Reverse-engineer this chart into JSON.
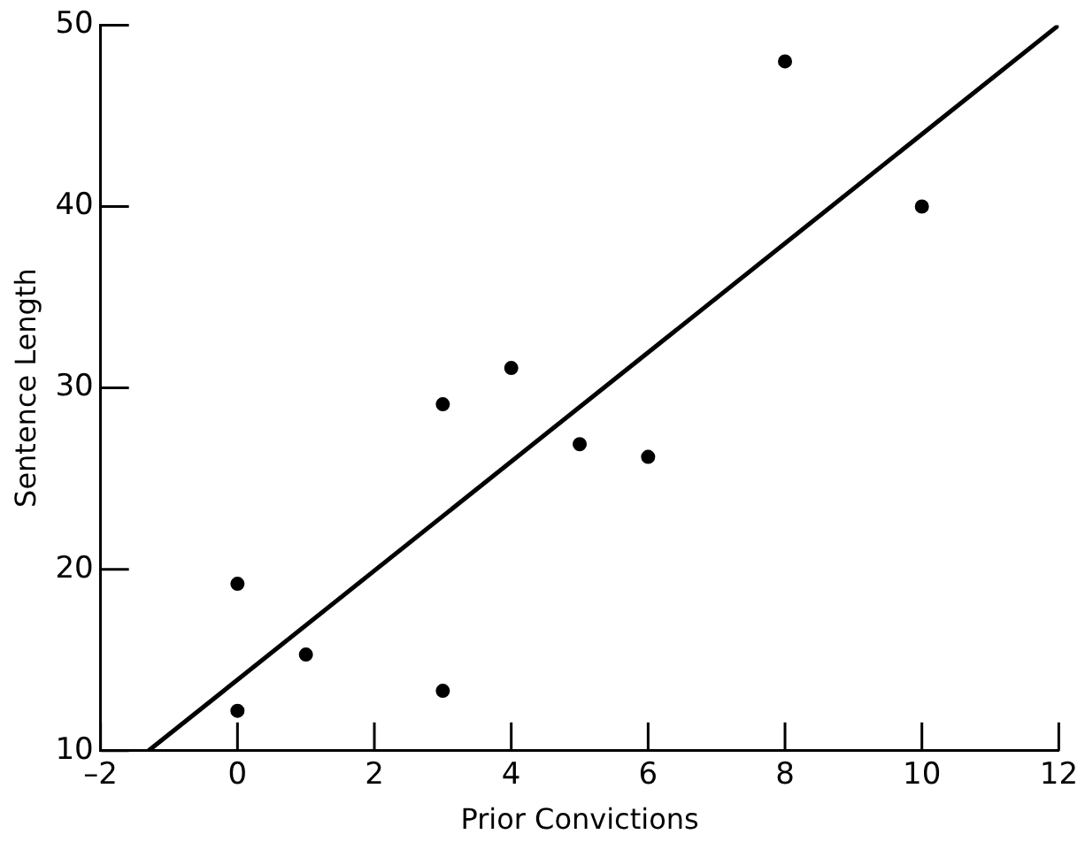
{
  "chart_data": {
    "type": "scatter",
    "xlabel": "Prior Convictions",
    "ylabel": "Sentence Length",
    "x": [
      0,
      0,
      1,
      3,
      3,
      4,
      5,
      6,
      8,
      10
    ],
    "series": [
      {
        "type": "scatter",
        "color": "#000000",
        "values": [
          19.2,
          12.2,
          15.3,
          13.3,
          29.1,
          31.1,
          26.9,
          26.2,
          48.0,
          40.0
        ]
      },
      {
        "type": "line",
        "color": "#000000",
        "x": [
          -1.3,
          12
        ],
        "values": [
          10,
          50
        ],
        "marker": "none"
      }
    ],
    "marker": "circle",
    "grid": false,
    "legend": false,
    "xlim": [
      -2,
      12
    ],
    "xticks": [
      {
        "value": -2,
        "label": "–2"
      },
      0,
      2,
      4,
      6,
      8,
      10,
      12
    ],
    "ylim": [
      10,
      50
    ],
    "yticks": [
      10,
      20,
      30,
      40,
      50
    ]
  }
}
